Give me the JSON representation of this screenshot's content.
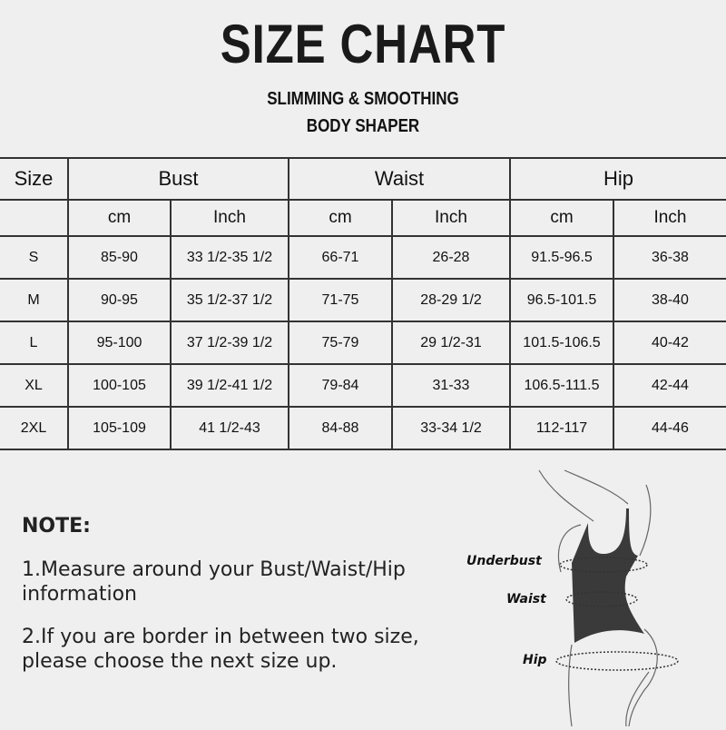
{
  "title": "SIZE CHART",
  "subtitle_line1": "SLIMMING & SMOOTHING",
  "subtitle_line2": "BODY SHAPER",
  "table": {
    "size_header": "Size",
    "groups": [
      "Bust",
      "Waist",
      "Hip"
    ],
    "units": [
      "cm",
      "Inch",
      "cm",
      "Inch",
      "cm",
      "Inch"
    ],
    "rows": [
      [
        "S",
        "85-90",
        "33 1/2-35 1/2",
        "66-71",
        "26-28",
        "91.5-96.5",
        "36-38"
      ],
      [
        "M",
        "90-95",
        "35 1/2-37 1/2",
        "71-75",
        "28-29 1/2",
        "96.5-101.5",
        "38-40"
      ],
      [
        "L",
        "95-100",
        "37 1/2-39 1/2",
        "75-79",
        "29 1/2-31",
        "101.5-106.5",
        "40-42"
      ],
      [
        "XL",
        "100-105",
        "39 1/2-41 1/2",
        "79-84",
        "31-33",
        "106.5-111.5",
        "42-44"
      ],
      [
        "2XL",
        "105-109",
        "41 1/2-43",
        "84-88",
        "33-34 1/2",
        "112-117",
        "44-46"
      ]
    ]
  },
  "note": {
    "heading": "NOTE:",
    "item1": "1.Measure around your Bust/Waist/Hip information",
    "item2": "2.If you are border in between two size, please choose the next size up."
  },
  "figure": {
    "labels": [
      "Underbust",
      "Waist",
      "Hip"
    ],
    "garment_color": "#3a3a3a"
  }
}
